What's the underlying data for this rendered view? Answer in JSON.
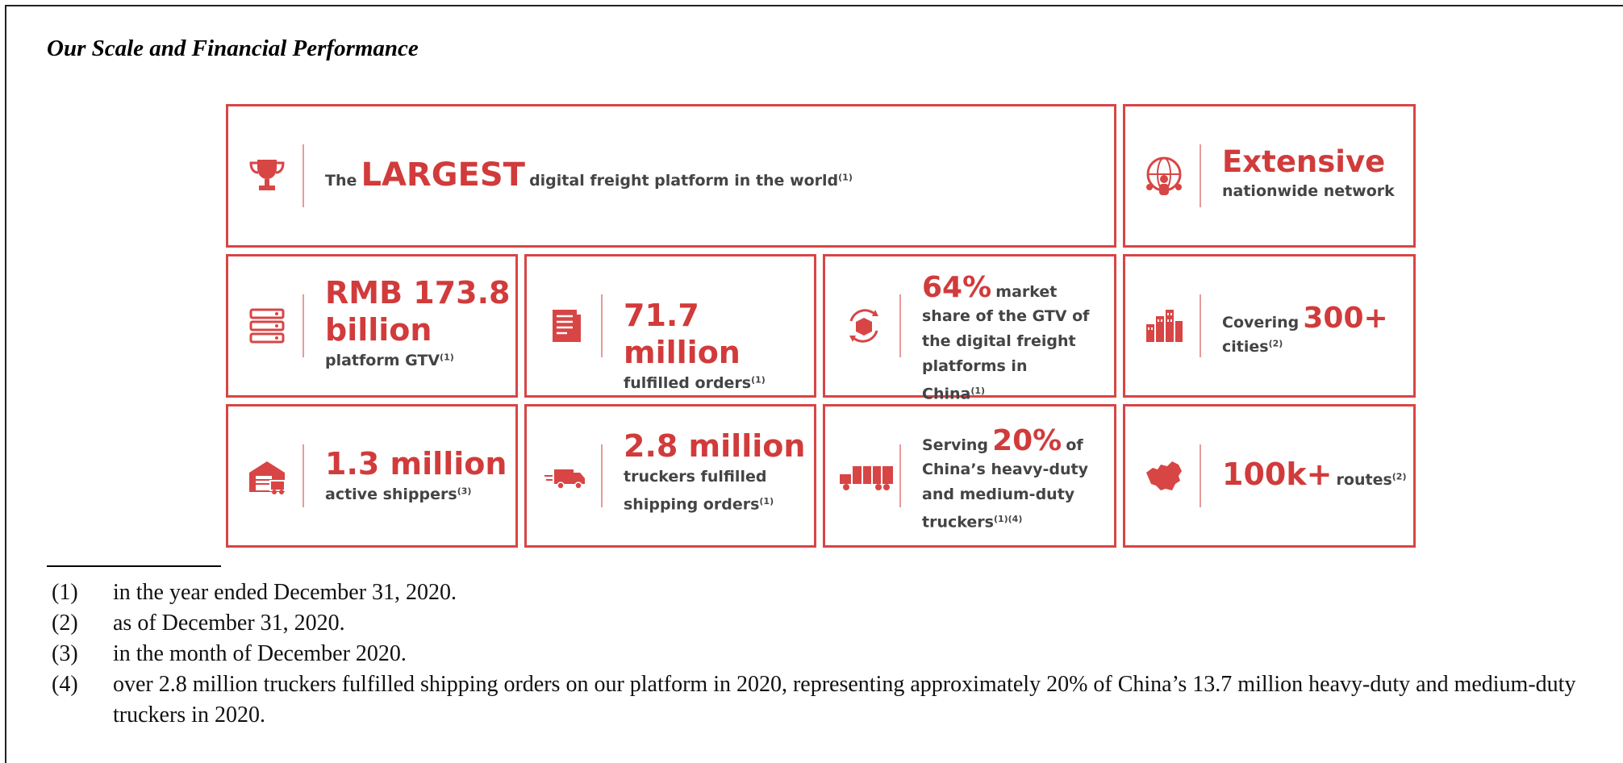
{
  "section_title": "Our Scale and Financial Performance",
  "colors": {
    "accent": "#d84545",
    "accent_text": "#d13b3b",
    "body_text": "#444444"
  },
  "infographic": {
    "largest": {
      "icon": "trophy-icon",
      "pre": "The",
      "highlight": "LARGEST",
      "post": "digital freight platform in the world",
      "note": "(1)"
    },
    "network": {
      "icon": "globe-people-icon",
      "highlight": "Extensive",
      "post": "nationwide network"
    },
    "gtv": {
      "icon": "server-stack-icon",
      "highlight": "RMB 173.8 billion",
      "post": "platform GTV",
      "note": "(1)"
    },
    "orders": {
      "icon": "document-icon",
      "highlight": "71.7 million",
      "post": "fulfilled orders",
      "note": "(1)"
    },
    "market_share": {
      "icon": "box-cycle-icon",
      "highlight": "64%",
      "post_inline": "market",
      "post": "share of the GTV of the digital freight platforms in China",
      "note": "(1)"
    },
    "cities": {
      "icon": "city-buildings-icon",
      "pre": "Covering",
      "highlight": "300+",
      "post": "cities",
      "note": "(2)"
    },
    "shippers": {
      "icon": "warehouse-icon",
      "highlight": "1.3 million",
      "post": "active shippers",
      "note": "(3)"
    },
    "truckers": {
      "icon": "moving-truck-icon",
      "highlight": "2.8 million",
      "post": "truckers fulfilled shipping orders",
      "note": "(1)"
    },
    "serving": {
      "icon": "semi-truck-icon",
      "pre": "Serving",
      "highlight": "20%",
      "post_inline": "of",
      "post": "China’s heavy-duty and medium-duty truckers",
      "note": "(1)(4)"
    },
    "routes": {
      "icon": "china-map-icon",
      "highlight": "100k+",
      "post": "routes",
      "note": "(2)"
    }
  },
  "footnotes": [
    {
      "num": "(1)",
      "text": "in the year ended December 31, 2020."
    },
    {
      "num": "(2)",
      "text": "as of December 31, 2020."
    },
    {
      "num": "(3)",
      "text": "in the month of December 2020."
    },
    {
      "num": "(4)",
      "text": "over 2.8 million truckers fulfilled shipping orders on our platform in 2020, representing approximately 20% of China’s 13.7 million heavy-duty and medium-duty truckers in 2020."
    }
  ]
}
